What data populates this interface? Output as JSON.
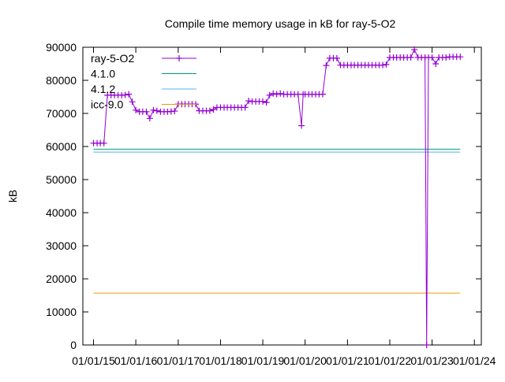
{
  "chart_data": {
    "type": "line",
    "title": "Compile time memory usage in kB for ray-5-O2",
    "ylabel": "kB",
    "xlabel": "",
    "x_tick_labels": [
      "01/01/15",
      "01/01/16",
      "01/01/17",
      "01/01/18",
      "01/01/19",
      "01/01/20",
      "01/01/21",
      "01/01/22",
      "01/01/23",
      "01/01/24"
    ],
    "y_ticks": [
      0,
      10000,
      20000,
      30000,
      40000,
      50000,
      60000,
      70000,
      80000,
      90000
    ],
    "xlim": [
      "2014-10-01",
      "2024-03-01"
    ],
    "ylim": [
      0,
      90000
    ],
    "legend_position": "top-left",
    "series": [
      {
        "name": "ray-5-O2",
        "color": "#9400d3",
        "style": "linespoints",
        "points": [
          [
            "2015-01-01",
            61000
          ],
          [
            "2015-02-01",
            61000
          ],
          [
            "2015-03-01",
            61000
          ],
          [
            "2015-04-01",
            61000
          ],
          [
            "2015-05-01",
            75500
          ],
          [
            "2015-06-01",
            75500
          ],
          [
            "2015-07-01",
            75500
          ],
          [
            "2015-08-01",
            75500
          ],
          [
            "2015-09-01",
            75500
          ],
          [
            "2015-10-01",
            75600
          ],
          [
            "2015-11-01",
            75800
          ],
          [
            "2015-12-01",
            73500
          ],
          [
            "2016-01-01",
            71000
          ],
          [
            "2016-02-01",
            70500
          ],
          [
            "2016-03-01",
            70500
          ],
          [
            "2016-04-01",
            70500
          ],
          [
            "2016-05-01",
            68500
          ],
          [
            "2016-06-01",
            71000
          ],
          [
            "2016-07-01",
            70800
          ],
          [
            "2016-08-01",
            70500
          ],
          [
            "2016-09-01",
            70500
          ],
          [
            "2016-10-01",
            70500
          ],
          [
            "2016-11-01",
            70600
          ],
          [
            "2016-12-01",
            70700
          ],
          [
            "2017-01-01",
            72800
          ],
          [
            "2017-02-01",
            72800
          ],
          [
            "2017-03-01",
            72800
          ],
          [
            "2017-04-01",
            72800
          ],
          [
            "2017-05-01",
            72800
          ],
          [
            "2017-06-01",
            72800
          ],
          [
            "2017-07-01",
            70800
          ],
          [
            "2017-08-01",
            70800
          ],
          [
            "2017-09-01",
            70800
          ],
          [
            "2017-10-01",
            70800
          ],
          [
            "2017-11-01",
            71200
          ],
          [
            "2017-12-01",
            71800
          ],
          [
            "2018-01-01",
            71800
          ],
          [
            "2018-02-01",
            71800
          ],
          [
            "2018-03-01",
            71800
          ],
          [
            "2018-04-01",
            71800
          ],
          [
            "2018-05-01",
            71800
          ],
          [
            "2018-06-01",
            71800
          ],
          [
            "2018-07-01",
            71800
          ],
          [
            "2018-08-01",
            71800
          ],
          [
            "2018-09-01",
            73800
          ],
          [
            "2018-10-01",
            73600
          ],
          [
            "2018-11-01",
            73600
          ],
          [
            "2018-12-01",
            73600
          ],
          [
            "2019-01-01",
            73600
          ],
          [
            "2019-02-01",
            73300
          ],
          [
            "2019-03-01",
            75500
          ],
          [
            "2019-04-01",
            76000
          ],
          [
            "2019-05-01",
            75800
          ],
          [
            "2019-06-01",
            76000
          ],
          [
            "2019-07-01",
            75800
          ],
          [
            "2019-08-01",
            75800
          ],
          [
            "2019-09-01",
            75800
          ],
          [
            "2019-10-01",
            75800
          ],
          [
            "2019-11-01",
            75800
          ],
          [
            "2019-12-01",
            66300
          ],
          [
            "2019-12-15",
            75800
          ],
          [
            "2020-01-01",
            75800
          ],
          [
            "2020-02-01",
            75800
          ],
          [
            "2020-03-01",
            75800
          ],
          [
            "2020-04-01",
            75800
          ],
          [
            "2020-05-01",
            75800
          ],
          [
            "2020-06-01",
            75800
          ],
          [
            "2020-07-01",
            84500
          ],
          [
            "2020-08-01",
            86700
          ],
          [
            "2020-09-01",
            86700
          ],
          [
            "2020-10-01",
            86700
          ],
          [
            "2020-11-01",
            84600
          ],
          [
            "2020-12-01",
            84600
          ],
          [
            "2021-01-01",
            84600
          ],
          [
            "2021-02-01",
            84600
          ],
          [
            "2021-03-01",
            84600
          ],
          [
            "2021-04-01",
            84600
          ],
          [
            "2021-05-01",
            84600
          ],
          [
            "2021-06-01",
            84600
          ],
          [
            "2021-07-01",
            84600
          ],
          [
            "2021-08-01",
            84600
          ],
          [
            "2021-09-01",
            84600
          ],
          [
            "2021-10-01",
            84600
          ],
          [
            "2021-11-01",
            84600
          ],
          [
            "2021-12-01",
            84800
          ],
          [
            "2022-01-01",
            86900
          ],
          [
            "2022-02-01",
            86900
          ],
          [
            "2022-03-01",
            86900
          ],
          [
            "2022-04-01",
            86900
          ],
          [
            "2022-05-01",
            86900
          ],
          [
            "2022-06-01",
            86900
          ],
          [
            "2022-07-01",
            86900
          ],
          [
            "2022-08-01",
            89300
          ],
          [
            "2022-09-01",
            86900
          ],
          [
            "2022-10-01",
            86900
          ],
          [
            "2022-11-01",
            86900
          ],
          [
            "2022-11-15",
            0
          ],
          [
            "2022-12-01",
            86900
          ],
          [
            "2023-01-01",
            86900
          ],
          [
            "2023-02-01",
            85000
          ],
          [
            "2023-03-01",
            86900
          ],
          [
            "2023-04-01",
            86900
          ],
          [
            "2023-05-01",
            86900
          ],
          [
            "2023-06-01",
            87100
          ],
          [
            "2023-07-01",
            87100
          ],
          [
            "2023-08-01",
            87100
          ],
          [
            "2023-09-01",
            87100
          ]
        ]
      },
      {
        "name": "4.1.0",
        "color": "#009e73",
        "style": "lines",
        "points": [
          [
            "2015-01-01",
            59200
          ],
          [
            "2023-09-01",
            59200
          ]
        ]
      },
      {
        "name": "4.1.2",
        "color": "#56b4e9",
        "style": "lines",
        "points": [
          [
            "2015-01-01",
            58300
          ],
          [
            "2023-09-01",
            58300
          ]
        ]
      },
      {
        "name": "icc-9.0",
        "color": "#e69f00",
        "style": "lines",
        "points": [
          [
            "2015-01-01",
            15700
          ],
          [
            "2023-09-01",
            15700
          ]
        ]
      }
    ]
  }
}
